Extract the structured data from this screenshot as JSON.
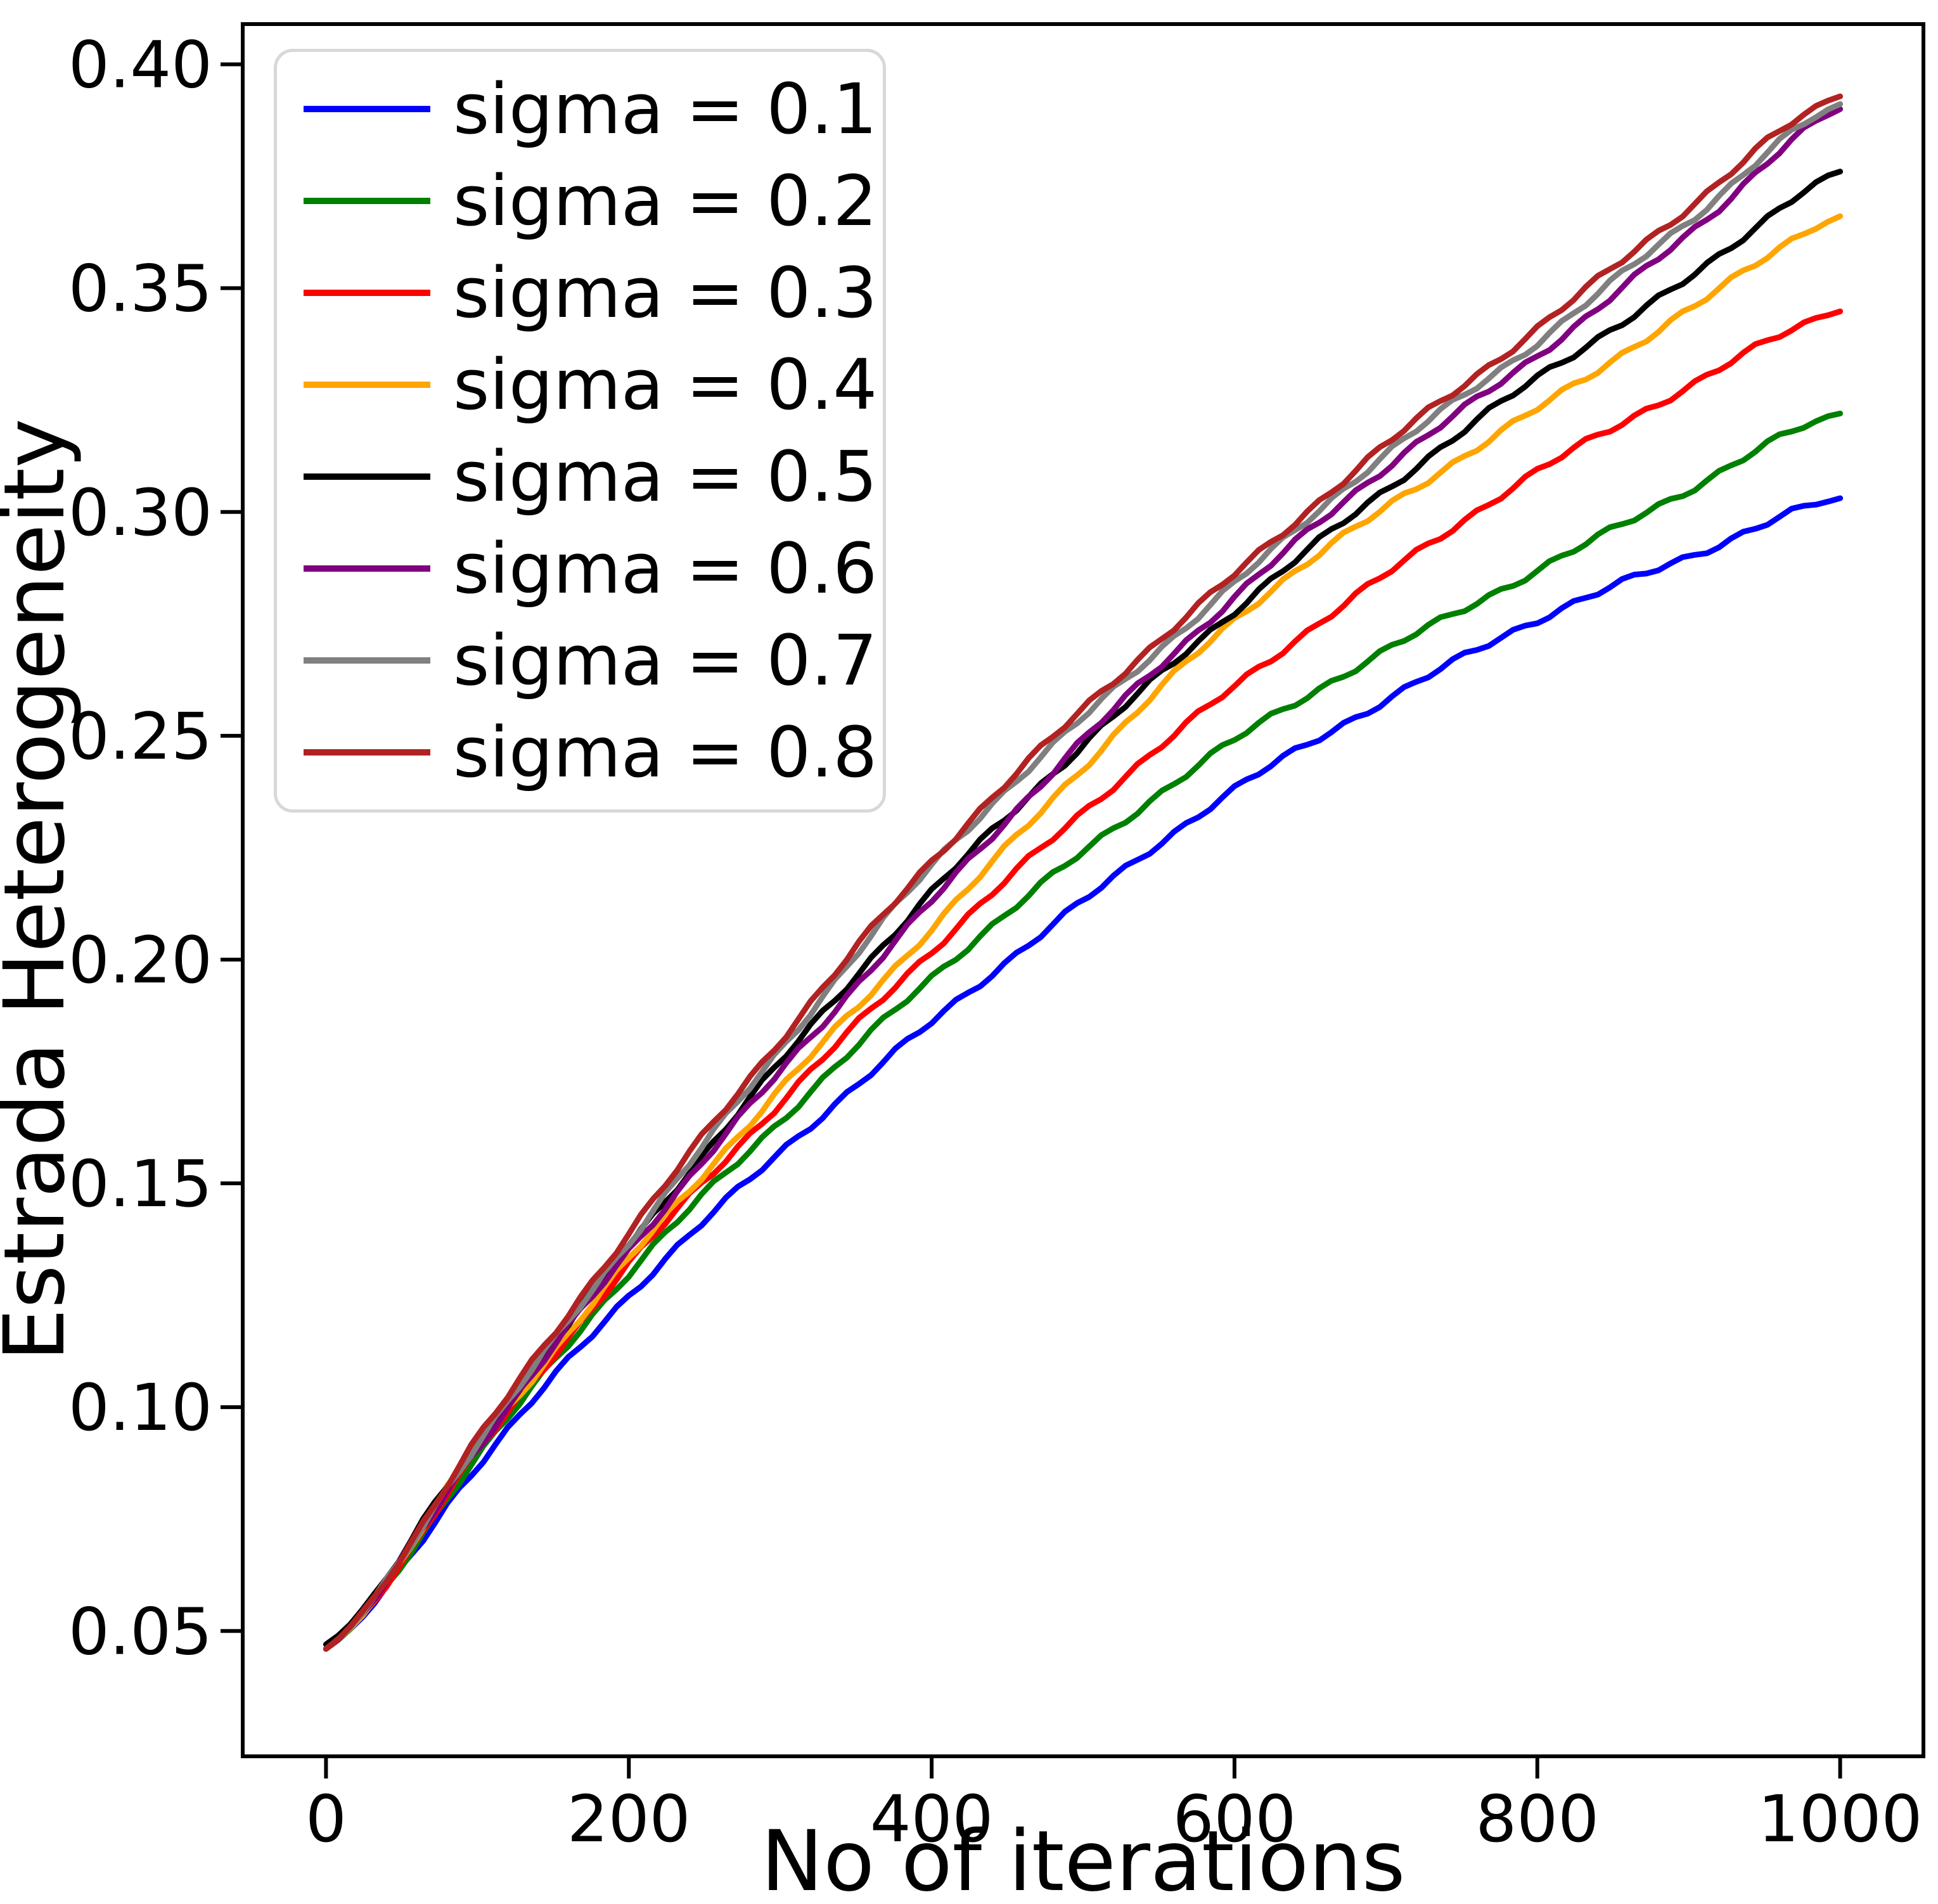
{
  "chart_data": {
    "type": "line",
    "title": "",
    "xlabel": "No of iterations",
    "ylabel": "Estrada Heterogeneity",
    "xlim": [
      -55,
      1055
    ],
    "ylim": [
      0.022,
      0.409
    ],
    "x_ticks": [
      0,
      200,
      400,
      600,
      800,
      1000
    ],
    "y_ticks": [
      0.05,
      0.1,
      0.15,
      0.2,
      0.25,
      0.3,
      0.35,
      0.4
    ],
    "grid": false,
    "legend_position": "upper left",
    "x": [
      0,
      100,
      200,
      300,
      400,
      500,
      600,
      700,
      800,
      900,
      1000
    ],
    "series": [
      {
        "name": "sigma = 0.1",
        "color": "#0000ff",
        "values": [
          0.046,
          0.087,
          0.125,
          0.157,
          0.186,
          0.213,
          0.238,
          0.258,
          0.276,
          0.29,
          0.303
        ]
      },
      {
        "name": "sigma = 0.2",
        "color": "#008000",
        "values": [
          0.046,
          0.089,
          0.13,
          0.164,
          0.196,
          0.224,
          0.249,
          0.269,
          0.287,
          0.305,
          0.322
        ]
      },
      {
        "name": "sigma = 0.3",
        "color": "#ff0000",
        "values": [
          0.046,
          0.09,
          0.132,
          0.168,
          0.202,
          0.233,
          0.261,
          0.286,
          0.309,
          0.328,
          0.345
        ]
      },
      {
        "name": "sigma = 0.4",
        "color": "#ffa500",
        "values": [
          0.046,
          0.091,
          0.133,
          0.171,
          0.207,
          0.243,
          0.276,
          0.301,
          0.323,
          0.345,
          0.366
        ]
      },
      {
        "name": "sigma = 0.5",
        "color": "#000000",
        "values": [
          0.047,
          0.092,
          0.136,
          0.177,
          0.215,
          0.248,
          0.278,
          0.305,
          0.33,
          0.352,
          0.376
        ]
      },
      {
        "name": "sigma = 0.6",
        "color": "#800080",
        "values": [
          0.046,
          0.091,
          0.135,
          0.175,
          0.213,
          0.249,
          0.281,
          0.31,
          0.335,
          0.362,
          0.39
        ]
      },
      {
        "name": "sigma = 0.7",
        "color": "#808080",
        "values": [
          0.046,
          0.092,
          0.137,
          0.18,
          0.221,
          0.254,
          0.284,
          0.313,
          0.338,
          0.365,
          0.391
        ]
      },
      {
        "name": "sigma = 0.8",
        "color": "#b22222",
        "values": [
          0.046,
          0.093,
          0.139,
          0.182,
          0.222,
          0.256,
          0.286,
          0.315,
          0.341,
          0.368,
          0.393
        ]
      }
    ]
  }
}
